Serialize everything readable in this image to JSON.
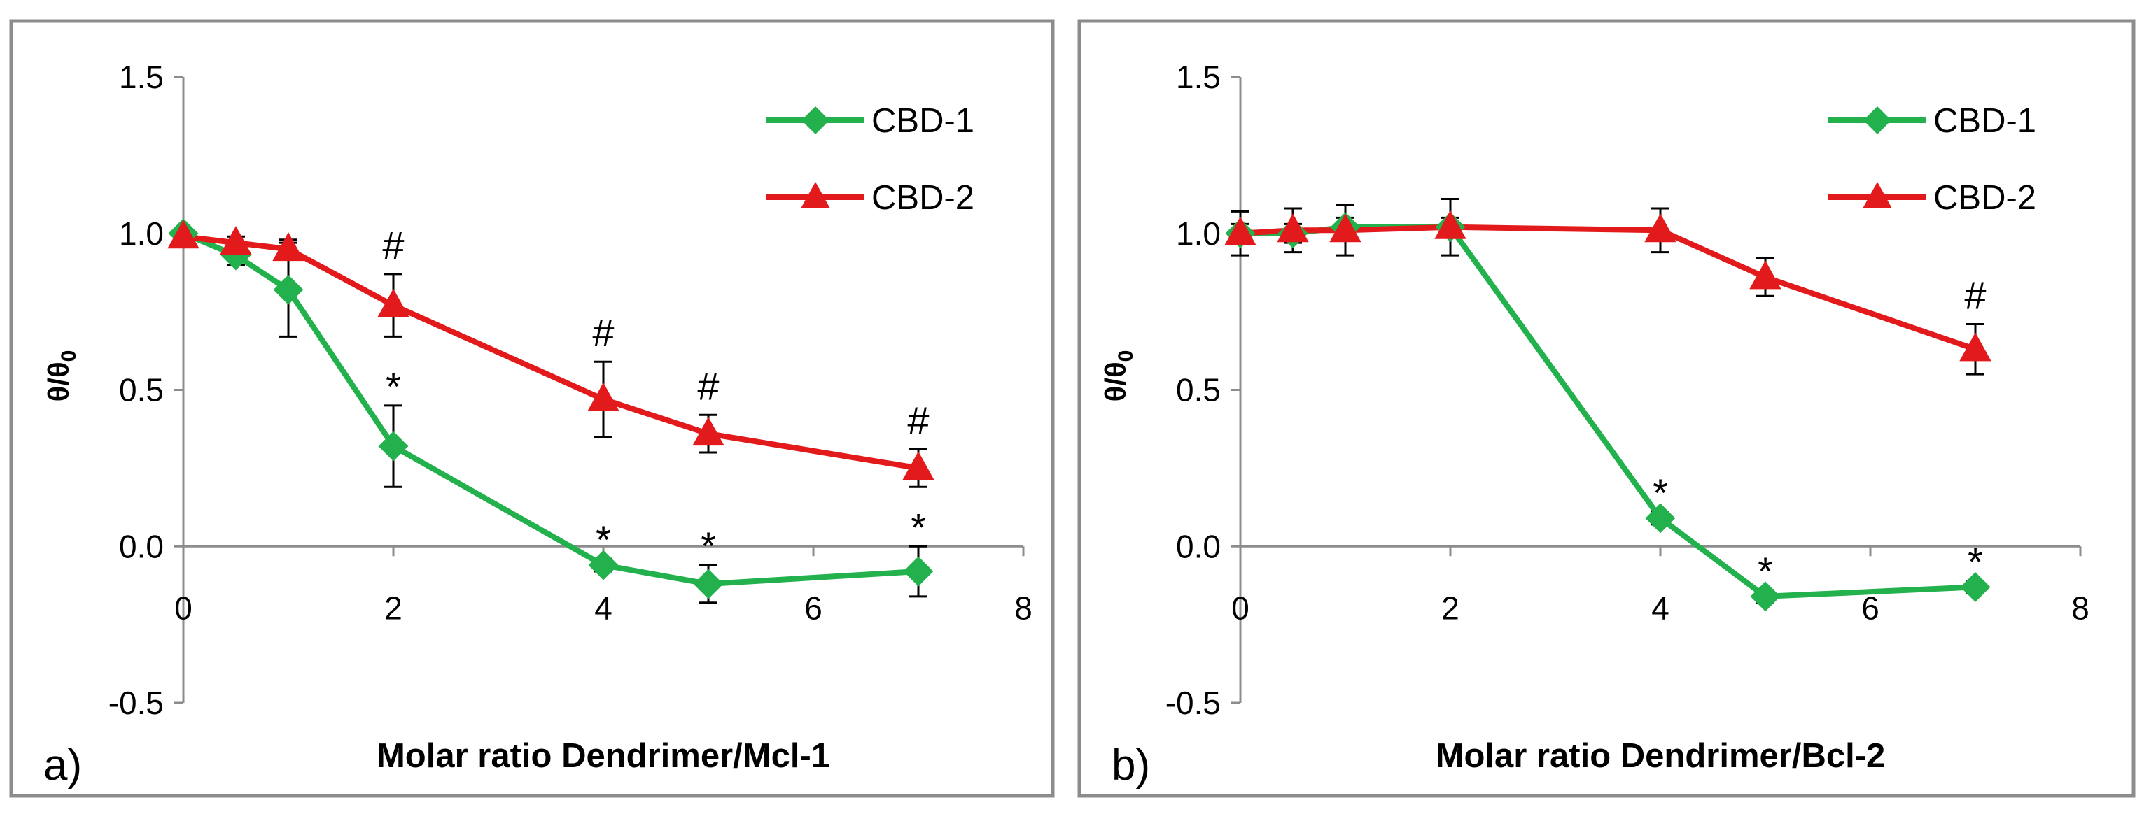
{
  "chart_data": [
    {
      "type": "line",
      "panel_label": "a)",
      "xlabel": "Molar ratio Dendrimer/Mcl-1",
      "ylabel": "θ/θ",
      "ylabel_sub": "0",
      "xlim": [
        0,
        8
      ],
      "ylim": [
        -0.5,
        1.5
      ],
      "xticks": [
        "0",
        "2",
        "4",
        "6",
        "8"
      ],
      "yticks": [
        "-0.5",
        "0.0",
        "0.5",
        "1.0",
        "1.5"
      ],
      "series": [
        {
          "name": "CBD-1",
          "color": "#22b14c",
          "marker": "diamond",
          "x": [
            0,
            0.5,
            1,
            2,
            4,
            5,
            7
          ],
          "y": [
            1.0,
            0.93,
            0.82,
            0.32,
            -0.06,
            -0.12,
            -0.08
          ],
          "err": [
            0.01,
            0.03,
            0.15,
            0.13,
            0.02,
            0.06,
            0.08
          ],
          "annotations": [
            null,
            null,
            null,
            "*",
            "*",
            "*",
            "*"
          ]
        },
        {
          "name": "CBD-2",
          "color": "#e31a1c",
          "marker": "triangle",
          "x": [
            0,
            0.5,
            1,
            2,
            4,
            5,
            7
          ],
          "y": [
            0.99,
            0.97,
            0.95,
            0.77,
            0.47,
            0.36,
            0.25
          ],
          "err": [
            0.02,
            0.02,
            0.03,
            0.1,
            0.12,
            0.06,
            0.06
          ],
          "annotations": [
            null,
            null,
            null,
            "#",
            "#",
            "#",
            "#"
          ]
        }
      ]
    },
    {
      "type": "line",
      "panel_label": "b)",
      "xlabel": "Molar ratio Dendrimer/Bcl-2",
      "ylabel": "θ/θ",
      "ylabel_sub": "0",
      "xlim": [
        0,
        8
      ],
      "ylim": [
        -0.5,
        1.5
      ],
      "xticks": [
        "0",
        "2",
        "4",
        "6",
        "8"
      ],
      "yticks": [
        "-0.5",
        "0.0",
        "0.5",
        "1.0",
        "1.5"
      ],
      "series": [
        {
          "name": "CBD-1",
          "color": "#22b14c",
          "marker": "diamond",
          "x": [
            0,
            0.5,
            1,
            2,
            4,
            5,
            7
          ],
          "y": [
            1.0,
            1.0,
            1.02,
            1.02,
            0.09,
            -0.16,
            -0.13
          ],
          "err": [
            0.03,
            0.03,
            0.03,
            0.03,
            0.02,
            0.02,
            0.02
          ],
          "annotations": [
            null,
            null,
            null,
            null,
            "*",
            "*",
            "*"
          ]
        },
        {
          "name": "CBD-2",
          "color": "#e31a1c",
          "marker": "triangle",
          "x": [
            0,
            0.5,
            1,
            2,
            4,
            5,
            7
          ],
          "y": [
            1.0,
            1.01,
            1.01,
            1.02,
            1.01,
            0.86,
            0.63
          ],
          "err": [
            0.07,
            0.07,
            0.08,
            0.09,
            0.07,
            0.06,
            0.08
          ],
          "annotations": [
            null,
            null,
            null,
            null,
            null,
            null,
            "#"
          ]
        }
      ]
    }
  ]
}
